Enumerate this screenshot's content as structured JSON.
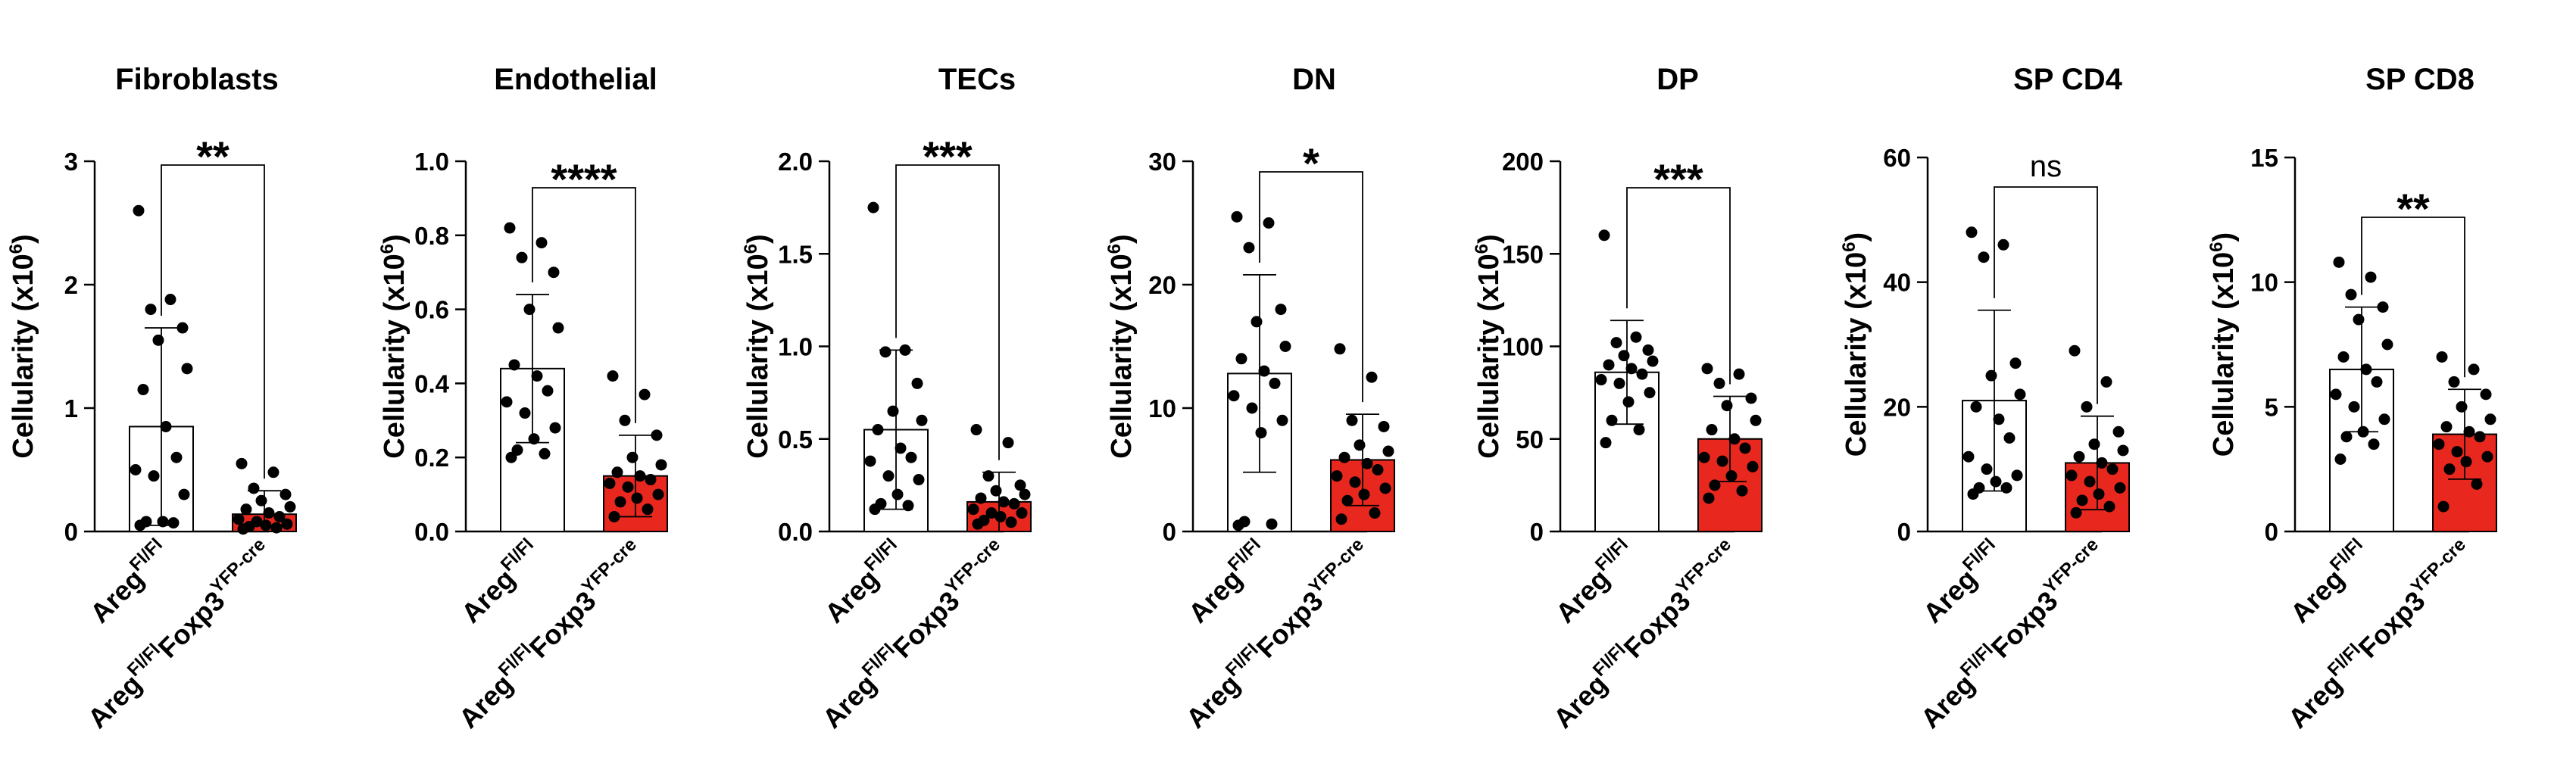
{
  "colors": {
    "ko_bar": "#E8271E",
    "ctrl_bar": "#FFFFFF",
    "ink": "#000000"
  },
  "chart_data": [
    {
      "type": "bar",
      "title": "Fibroblasts",
      "ylabel": "Cellularity (x10",
      "ylabel_sup": "6",
      "ylabel_end": ")",
      "ylim": [
        0,
        3
      ],
      "yticks": [
        0,
        1,
        2,
        3
      ],
      "tick_labels": [
        "0",
        "1",
        "2",
        "3"
      ],
      "significance": "**",
      "categories": [
        {
          "base": "Areg",
          "sup": "Fl/Fl"
        },
        {
          "base": "Areg",
          "sup": "Fl/Fl",
          "mid": "Foxp3",
          "sup2": "YFP-cre"
        }
      ],
      "series": [
        {
          "name": "Areg Fl/Fl",
          "mean": 0.85,
          "sd": 0.8,
          "points": [
            2.6,
            1.88,
            1.8,
            1.65,
            1.55,
            1.32,
            1.15,
            0.85,
            0.6,
            0.5,
            0.45,
            0.3,
            0.08,
            0.08,
            0.07,
            0.05
          ]
        },
        {
          "name": "Areg Fl/Fl Foxp3 YFP-cre",
          "mean": 0.14,
          "sd": 0.19,
          "points": [
            0.55,
            0.48,
            0.35,
            0.3,
            0.25,
            0.2,
            0.18,
            0.15,
            0.12,
            0.1,
            0.08,
            0.06,
            0.05,
            0.04,
            0.03,
            0.02
          ]
        }
      ]
    },
    {
      "type": "bar",
      "title": "Endothelial",
      "ylabel": "Cellularity (x10",
      "ylabel_sup": "6",
      "ylabel_end": ")",
      "ylim": [
        0,
        1
      ],
      "yticks": [
        0,
        0.2,
        0.4,
        0.6,
        0.8,
        1.0
      ],
      "tick_labels": [
        "0.0",
        "0.2",
        "0.4",
        "0.6",
        "0.8",
        "1.0"
      ],
      "significance": "****",
      "categories": [
        {
          "base": "Areg",
          "sup": "Fl/Fl"
        },
        {
          "base": "Areg",
          "sup": "Fl/Fl",
          "mid": "Foxp3",
          "sup2": "YFP-cre"
        }
      ],
      "series": [
        {
          "name": "Areg Fl/Fl",
          "mean": 0.44,
          "sd": 0.2,
          "points": [
            0.82,
            0.78,
            0.74,
            0.7,
            0.6,
            0.55,
            0.45,
            0.42,
            0.38,
            0.35,
            0.32,
            0.28,
            0.25,
            0.22,
            0.21,
            0.2
          ]
        },
        {
          "name": "Areg Fl/Fl Foxp3 YFP-cre",
          "mean": 0.15,
          "sd": 0.11,
          "points": [
            0.42,
            0.37,
            0.3,
            0.26,
            0.2,
            0.18,
            0.16,
            0.15,
            0.14,
            0.13,
            0.12,
            0.1,
            0.09,
            0.08,
            0.06,
            0.04
          ]
        }
      ]
    },
    {
      "type": "bar",
      "title": "TECs",
      "ylabel": "Cellularity (x10",
      "ylabel_sup": "6",
      "ylabel_end": ")",
      "ylim": [
        0,
        2
      ],
      "yticks": [
        0,
        0.5,
        1,
        1.5,
        2
      ],
      "tick_labels": [
        "0.0",
        "0.5",
        "1.0",
        "1.5",
        "2.0"
      ],
      "significance": "***",
      "categories": [
        {
          "base": "Areg",
          "sup": "Fl/Fl"
        },
        {
          "base": "Areg",
          "sup": "Fl/Fl",
          "mid": "Foxp3",
          "sup2": "YFP-cre"
        }
      ],
      "series": [
        {
          "name": "Areg Fl/Fl",
          "mean": 0.55,
          "sd": 0.43,
          "points": [
            1.75,
            0.98,
            0.97,
            0.8,
            0.65,
            0.6,
            0.55,
            0.45,
            0.4,
            0.38,
            0.3,
            0.28,
            0.2,
            0.15,
            0.14,
            0.12
          ]
        },
        {
          "name": "Areg Fl/Fl Foxp3 YFP-cre",
          "mean": 0.16,
          "sd": 0.16,
          "points": [
            0.55,
            0.48,
            0.3,
            0.25,
            0.22,
            0.2,
            0.18,
            0.16,
            0.15,
            0.12,
            0.1,
            0.1,
            0.08,
            0.06,
            0.05,
            0.04
          ]
        }
      ]
    },
    {
      "type": "bar",
      "title": "DN",
      "ylabel": "Cellularity (x10",
      "ylabel_sup": "6",
      "ylabel_end": ")",
      "ylim": [
        0,
        30
      ],
      "yticks": [
        0,
        10,
        20,
        30
      ],
      "tick_labels": [
        "0",
        "10",
        "20",
        "30"
      ],
      "significance": "*",
      "categories": [
        {
          "base": "Areg",
          "sup": "Fl/Fl"
        },
        {
          "base": "Areg",
          "sup": "Fl/Fl",
          "mid": "Foxp3",
          "sup2": "YFP-cre"
        }
      ],
      "series": [
        {
          "name": "Areg Fl/Fl",
          "mean": 12.8,
          "sd": 8.0,
          "points": [
            25.5,
            25,
            23,
            18,
            17,
            15,
            14,
            13,
            12,
            11,
            10,
            9,
            8,
            0.8,
            0.6,
            0.5
          ]
        },
        {
          "name": "Areg Fl/Fl Foxp3 YFP-cre",
          "mean": 5.8,
          "sd": 3.7,
          "points": [
            14.8,
            12.5,
            9,
            8.5,
            7,
            6.5,
            6,
            5.5,
            5,
            4.5,
            4,
            3.5,
            3,
            2.5,
            1.5,
            1
          ]
        }
      ]
    },
    {
      "type": "bar",
      "title": "DP",
      "ylabel": "Cellularity (x10",
      "ylabel_sup": "6",
      "ylabel_end": ")",
      "ylim": [
        0,
        200
      ],
      "yticks": [
        0,
        50,
        100,
        150,
        200
      ],
      "tick_labels": [
        "0",
        "50",
        "100",
        "150",
        "200"
      ],
      "significance": "***",
      "categories": [
        {
          "base": "Areg",
          "sup": "Fl/Fl"
        },
        {
          "base": "Areg",
          "sup": "Fl/Fl",
          "mid": "Foxp3",
          "sup2": "YFP-cre"
        }
      ],
      "series": [
        {
          "name": "Areg Fl/Fl",
          "mean": 86,
          "sd": 28,
          "points": [
            160,
            105,
            102,
            98,
            95,
            92,
            90,
            88,
            85,
            82,
            80,
            75,
            70,
            60,
            55,
            48
          ]
        },
        {
          "name": "Areg Fl/Fl Foxp3 YFP-cre",
          "mean": 50,
          "sd": 23,
          "points": [
            88,
            85,
            80,
            72,
            68,
            60,
            55,
            50,
            45,
            40,
            38,
            35,
            30,
            25,
            22,
            18
          ]
        }
      ]
    },
    {
      "type": "bar",
      "title": "SP CD4",
      "ylabel": "Cellularity (x10",
      "ylabel_sup": "6",
      "ylabel_end": ")",
      "ylim": [
        0,
        60
      ],
      "yticks": [
        0,
        20,
        40,
        60
      ],
      "tick_labels": [
        "0",
        "20",
        "40",
        "60"
      ],
      "significance": "ns",
      "categories": [
        {
          "base": "Areg",
          "sup": "Fl/Fl"
        },
        {
          "base": "Areg",
          "sup": "Fl/Fl",
          "mid": "Foxp3",
          "sup2": "YFP-cre"
        }
      ],
      "series": [
        {
          "name": "Areg Fl/Fl",
          "mean": 21,
          "sd": 14.5,
          "points": [
            48,
            46,
            44,
            27,
            25,
            22,
            20,
            18,
            15,
            12,
            10,
            9,
            8,
            7,
            7,
            6
          ]
        },
        {
          "name": "Areg Fl/Fl Foxp3 YFP-cre",
          "mean": 11,
          "sd": 7.5,
          "points": [
            29,
            24,
            20,
            16,
            14,
            13,
            12,
            11,
            10,
            9,
            8,
            7,
            6,
            5,
            4,
            3
          ]
        }
      ]
    },
    {
      "type": "bar",
      "title": "SP CD8",
      "ylabel": "Cellularity (x10",
      "ylabel_sup": "6",
      "ylabel_end": ")",
      "ylim": [
        0,
        15
      ],
      "yticks": [
        0,
        5,
        10,
        15
      ],
      "tick_labels": [
        "0",
        "5",
        "10",
        "15"
      ],
      "significance": "**",
      "categories": [
        {
          "base": "Areg",
          "sup": "Fl/Fl"
        },
        {
          "base": "Areg",
          "sup": "Fl/Fl",
          "mid": "Foxp3",
          "sup2": "YFP-cre"
        }
      ],
      "series": [
        {
          "name": "Areg Fl/Fl",
          "mean": 6.5,
          "sd": 2.5,
          "points": [
            10.8,
            10.2,
            9.5,
            9,
            8.5,
            7.5,
            7,
            6.5,
            6,
            5.5,
            5,
            4.5,
            4,
            3.8,
            3.5,
            2.9
          ]
        },
        {
          "name": "Areg Fl/Fl Foxp3 YFP-cre",
          "mean": 3.9,
          "sd": 1.8,
          "points": [
            7,
            6.5,
            6,
            5.5,
            5,
            4.5,
            4.2,
            4,
            3.8,
            3.5,
            3.2,
            3,
            2.8,
            2.5,
            1.9,
            1
          ]
        }
      ]
    }
  ]
}
